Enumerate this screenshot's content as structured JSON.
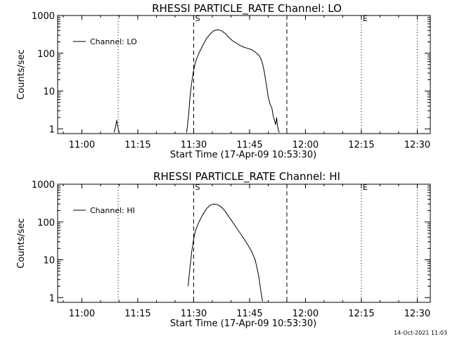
{
  "chart_data": [
    {
      "type": "line",
      "title": "RHESSI PARTICLE_RATE Channel: LO",
      "xlabel": "Start Time (17-Apr-09 10:53:30)",
      "ylabel": "Counts/sec",
      "y_scale": "log",
      "ylim": [
        0.75,
        1000
      ],
      "xlim": [
        "10:53:30",
        "12:33:30"
      ],
      "x_ticks": [
        "11:00",
        "11:15",
        "11:30",
        "11:45",
        "12:00",
        "12:15",
        "12:30"
      ],
      "y_ticks": [
        "1",
        "10",
        "100",
        "1000"
      ],
      "legend": "top-left",
      "series": [
        {
          "name": "Channel: LO",
          "x": [
            "11:08:40",
            "11:09:00",
            "11:09:20",
            "11:09:40",
            "11:10:00",
            "11:28:05",
            "11:28:20",
            "11:28:40",
            "11:29:00",
            "11:29:20",
            "11:29:50",
            "11:30:30",
            "11:31:30",
            "11:32:30",
            "11:33:30",
            "11:34:30",
            "11:35:30",
            "11:36:30",
            "11:37:30",
            "11:38:30",
            "11:39:30",
            "11:40:30",
            "11:41:30",
            "11:42:30",
            "11:43:30",
            "11:44:30",
            "11:45:30",
            "11:46:30",
            "11:47:30",
            "11:48:00",
            "11:48:30",
            "11:49:00",
            "11:49:30",
            "11:50:00",
            "11:50:30",
            "11:51:00",
            "11:51:20",
            "11:51:40",
            "11:52:00",
            "11:52:15",
            "11:52:30",
            "11:52:45",
            "11:53:00"
          ],
          "values": [
            0.8,
            1.1,
            1.7,
            1.1,
            0.8,
            0.8,
            1.2,
            2.5,
            6.5,
            13,
            30,
            60,
            105,
            165,
            250,
            330,
            400,
            420,
            395,
            330,
            260,
            210,
            185,
            160,
            145,
            135,
            125,
            108,
            88,
            73,
            52,
            30,
            15,
            7,
            4.5,
            3.5,
            2.2,
            1.7,
            1.3,
            2.0,
            1.2,
            0.9,
            0.8
          ]
        }
      ],
      "markers": [
        {
          "label": "S",
          "time": "11:30:00",
          "style": "dashed"
        },
        {
          "label": "",
          "time": "11:55:00",
          "style": "dashed"
        },
        {
          "label": "E",
          "time": "12:15:00",
          "style": "dotted"
        }
      ],
      "reference_lines": [
        {
          "time": "10:53:30",
          "style": "dotted"
        },
        {
          "time": "11:09:45",
          "style": "dotted"
        },
        {
          "time": "12:30:00",
          "style": "dotted"
        }
      ]
    },
    {
      "type": "line",
      "title": "RHESSI PARTICLE_RATE Channel: HI",
      "xlabel": "Start Time (17-Apr-09 10:53:30)",
      "ylabel": "Counts/sec",
      "y_scale": "log",
      "ylim": [
        0.75,
        1000
      ],
      "xlim": [
        "10:53:30",
        "12:33:30"
      ],
      "x_ticks": [
        "11:00",
        "11:15",
        "11:30",
        "11:45",
        "12:00",
        "12:15",
        "12:30"
      ],
      "y_ticks": [
        "1",
        "10",
        "100",
        "1000"
      ],
      "legend": "top-left",
      "series": [
        {
          "name": "Channel: HI",
          "x": [
            "11:28:30",
            "11:29:00",
            "11:29:30",
            "11:30:00",
            "11:30:30",
            "11:31:30",
            "11:32:30",
            "11:33:30",
            "11:34:30",
            "11:35:30",
            "11:36:30",
            "11:37:30",
            "11:38:30",
            "11:39:30",
            "11:40:30",
            "11:41:30",
            "11:42:30",
            "11:43:30",
            "11:44:30",
            "11:45:30",
            "11:46:30",
            "11:47:00",
            "11:47:30",
            "11:47:50",
            "11:48:10",
            "11:48:30"
          ],
          "values": [
            2.0,
            6,
            17,
            35,
            60,
            105,
            160,
            230,
            280,
            300,
            285,
            245,
            190,
            135,
            98,
            70,
            50,
            36,
            25,
            17,
            10,
            6,
            3.5,
            2.0,
            1.2,
            0.8
          ]
        }
      ],
      "markers": [
        {
          "label": "S",
          "time": "11:30:00",
          "style": "dashed"
        },
        {
          "label": "",
          "time": "11:55:00",
          "style": "dashed"
        },
        {
          "label": "E",
          "time": "12:15:00",
          "style": "dotted"
        }
      ],
      "reference_lines": [
        {
          "time": "10:53:30",
          "style": "dotted"
        },
        {
          "time": "11:09:45",
          "style": "dotted"
        },
        {
          "time": "12:30:00",
          "style": "dotted"
        }
      ]
    }
  ],
  "footer": {
    "timestamp": "14-Oct-2021 11:03"
  }
}
